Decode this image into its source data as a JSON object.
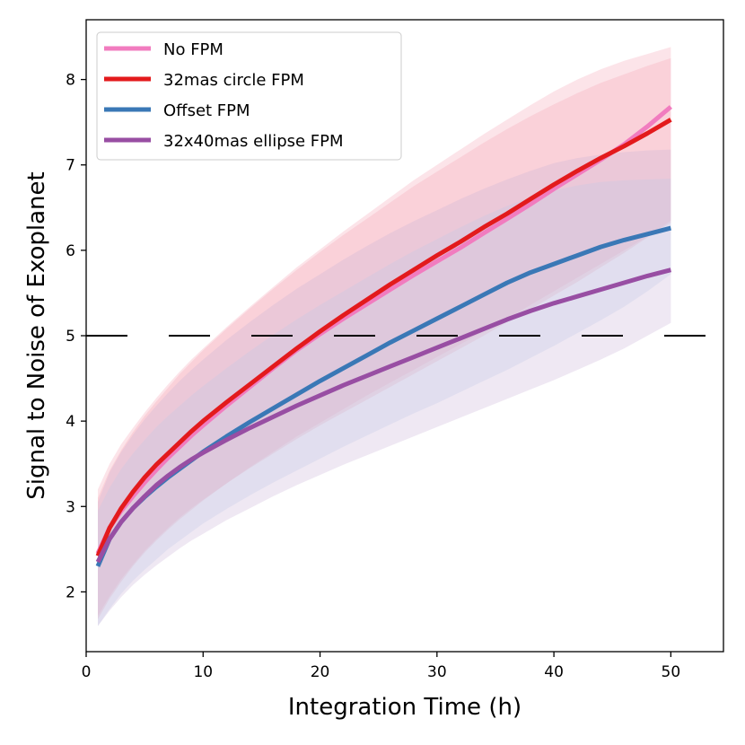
{
  "chart_data": {
    "type": "line",
    "title": "",
    "xlabel": "Integration Time (h)",
    "ylabel": "Signal to Noise of Exoplanet",
    "xlim": [
      0,
      54.5
    ],
    "ylim": [
      1.3,
      8.7
    ],
    "xticks": [
      0,
      10,
      20,
      30,
      40,
      50
    ],
    "yticks": [
      2,
      3,
      4,
      5,
      6,
      7,
      8
    ],
    "grid": false,
    "legend_position": "top-left",
    "threshold": {
      "y": 5,
      "style": "dashed",
      "color": "#000000"
    },
    "x": [
      1,
      2,
      3,
      4,
      5,
      6,
      7,
      8,
      9,
      10,
      12,
      14,
      16,
      18,
      20,
      22,
      24,
      26,
      28,
      30,
      32,
      34,
      36,
      38,
      40,
      42,
      44,
      46,
      48,
      50
    ],
    "series": [
      {
        "name": "No FPM",
        "color": "#f17cbf",
        "band_color": "#f6a5b5",
        "values": [
          2.45,
          2.75,
          2.95,
          3.12,
          3.28,
          3.43,
          3.57,
          3.7,
          3.83,
          3.95,
          4.18,
          4.4,
          4.62,
          4.83,
          5.02,
          5.2,
          5.37,
          5.54,
          5.71,
          5.87,
          6.03,
          6.2,
          6.37,
          6.54,
          6.72,
          6.89,
          7.06,
          7.24,
          7.45,
          7.68
        ],
        "lower": [
          1.72,
          1.95,
          2.15,
          2.32,
          2.48,
          2.62,
          2.75,
          2.87,
          2.98,
          3.08,
          3.27,
          3.45,
          3.62,
          3.79,
          3.95,
          4.1,
          4.25,
          4.4,
          4.55,
          4.7,
          4.85,
          5.0,
          5.16,
          5.31,
          5.47,
          5.63,
          5.8,
          5.97,
          6.15,
          6.35
        ],
        "upper": [
          3.2,
          3.5,
          3.73,
          3.92,
          4.1,
          4.27,
          4.43,
          4.58,
          4.72,
          4.85,
          5.1,
          5.34,
          5.57,
          5.8,
          6.01,
          6.22,
          6.42,
          6.62,
          6.82,
          7.0,
          7.18,
          7.36,
          7.53,
          7.7,
          7.86,
          8.0,
          8.12,
          8.22,
          8.3,
          8.38
        ]
      },
      {
        "name": "32mas circle FPM",
        "color": "#e31a1c",
        "band_color": "#f6a5b5",
        "values": [
          2.42,
          2.75,
          2.98,
          3.17,
          3.34,
          3.49,
          3.62,
          3.75,
          3.88,
          4.0,
          4.22,
          4.43,
          4.64,
          4.85,
          5.05,
          5.24,
          5.42,
          5.6,
          5.77,
          5.94,
          6.1,
          6.27,
          6.43,
          6.6,
          6.77,
          6.93,
          7.08,
          7.22,
          7.37,
          7.53
        ],
        "lower": [
          1.68,
          1.92,
          2.12,
          2.3,
          2.46,
          2.6,
          2.73,
          2.85,
          2.96,
          3.07,
          3.27,
          3.46,
          3.64,
          3.82,
          3.98,
          4.14,
          4.3,
          4.45,
          4.6,
          4.75,
          4.9,
          5.05,
          5.2,
          5.36,
          5.52,
          5.68,
          5.84,
          6.0,
          6.16,
          6.32
        ],
        "upper": [
          3.1,
          3.42,
          3.66,
          3.87,
          4.06,
          4.23,
          4.39,
          4.55,
          4.69,
          4.83,
          5.08,
          5.32,
          5.55,
          5.77,
          5.98,
          6.18,
          6.37,
          6.56,
          6.75,
          6.92,
          7.09,
          7.26,
          7.42,
          7.57,
          7.71,
          7.84,
          7.96,
          8.06,
          8.16,
          8.25
        ]
      },
      {
        "name": "Offset FPM",
        "color": "#3a78b6",
        "band_color": "#bdd0ea",
        "values": [
          2.3,
          2.62,
          2.82,
          2.98,
          3.11,
          3.23,
          3.34,
          3.44,
          3.54,
          3.64,
          3.82,
          3.99,
          4.15,
          4.31,
          4.47,
          4.62,
          4.77,
          4.92,
          5.06,
          5.2,
          5.34,
          5.48,
          5.62,
          5.74,
          5.84,
          5.94,
          6.04,
          6.12,
          6.19,
          6.26
        ],
        "lower": [
          1.6,
          1.8,
          1.98,
          2.13,
          2.26,
          2.38,
          2.5,
          2.6,
          2.7,
          2.8,
          2.97,
          3.13,
          3.28,
          3.42,
          3.56,
          3.7,
          3.83,
          3.96,
          4.09,
          4.21,
          4.34,
          4.47,
          4.6,
          4.74,
          4.88,
          5.03,
          5.18,
          5.34,
          5.52,
          5.72
        ],
        "upper": [
          2.95,
          3.22,
          3.44,
          3.62,
          3.78,
          3.93,
          4.06,
          4.18,
          4.3,
          4.41,
          4.62,
          4.82,
          5.01,
          5.19,
          5.36,
          5.52,
          5.68,
          5.84,
          5.99,
          6.13,
          6.27,
          6.4,
          6.52,
          6.62,
          6.7,
          6.76,
          6.8,
          6.82,
          6.83,
          6.84
        ]
      },
      {
        "name": "32x40mas ellipse FPM",
        "color": "#984ea3",
        "band_color": "#cbb2d6",
        "values": [
          2.35,
          2.62,
          2.82,
          2.98,
          3.12,
          3.25,
          3.36,
          3.46,
          3.55,
          3.63,
          3.78,
          3.92,
          4.05,
          4.18,
          4.3,
          4.42,
          4.53,
          4.64,
          4.75,
          4.86,
          4.97,
          5.08,
          5.19,
          5.29,
          5.38,
          5.46,
          5.54,
          5.62,
          5.7,
          5.77
        ],
        "lower": [
          1.6,
          1.78,
          1.94,
          2.08,
          2.2,
          2.31,
          2.41,
          2.51,
          2.6,
          2.68,
          2.84,
          2.98,
          3.12,
          3.25,
          3.37,
          3.49,
          3.6,
          3.71,
          3.82,
          3.93,
          4.04,
          4.15,
          4.26,
          4.37,
          4.48,
          4.6,
          4.72,
          4.85,
          5.0,
          5.15
        ],
        "upper": [
          3.05,
          3.4,
          3.64,
          3.84,
          4.02,
          4.18,
          4.33,
          4.47,
          4.6,
          4.72,
          4.95,
          5.16,
          5.36,
          5.55,
          5.72,
          5.89,
          6.05,
          6.2,
          6.34,
          6.47,
          6.6,
          6.72,
          6.83,
          6.93,
          7.02,
          7.08,
          7.12,
          7.15,
          7.17,
          7.18
        ]
      }
    ]
  }
}
